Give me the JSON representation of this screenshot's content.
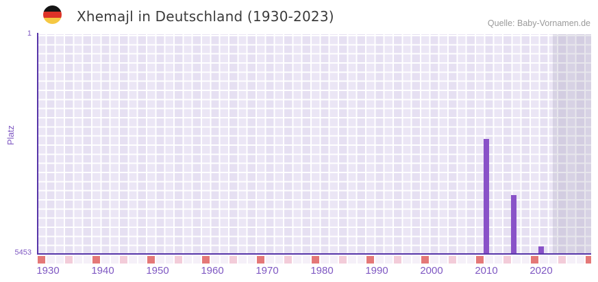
{
  "header": {
    "title": "Xhemajl in Deutschland (1930-2023)",
    "flag_icon": "germany-flag-icon",
    "source": "Quelle: Baby-Vornamen.de"
  },
  "chart_data": {
    "type": "bar",
    "title": "Xhemajl in Deutschland (1930-2023)",
    "xlabel": "",
    "ylabel": "Platz",
    "y_axis": {
      "top_label": "1",
      "bottom_label": "5453",
      "min": 1,
      "max": 5453,
      "inverted": true
    },
    "x_ticks": [
      1930,
      1940,
      1950,
      1960,
      1970,
      1980,
      1990,
      2000,
      2010,
      2020
    ],
    "minor_tick_interval_years": 5,
    "bars": [
      {
        "year": 2010,
        "rank": 2600
      },
      {
        "year": 2015,
        "rank": 4000
      },
      {
        "year": 2020,
        "rank": 5280
      }
    ],
    "shaded_region": {
      "from_year": 2022,
      "note": "right-edge gray band"
    },
    "grid": "checkerboard",
    "legend": "none"
  },
  "palette": {
    "bar": "#8952c8",
    "axis": "#5634a8",
    "tick_label": "#7e57c2",
    "title": "#3b3b3b",
    "source": "#9a9a9a",
    "grid_cell": "#ebe6f5",
    "grid_cell_alt": "#e6e0f2",
    "band": "rgba(136,130,160,0.20)",
    "tick_dark": "#e47878",
    "tick_light": "#f3ccd9",
    "tick_base": "#f5f0f8",
    "flag_black": "#151515",
    "flag_red": "#dd3328",
    "flag_gold": "#f5c843"
  }
}
